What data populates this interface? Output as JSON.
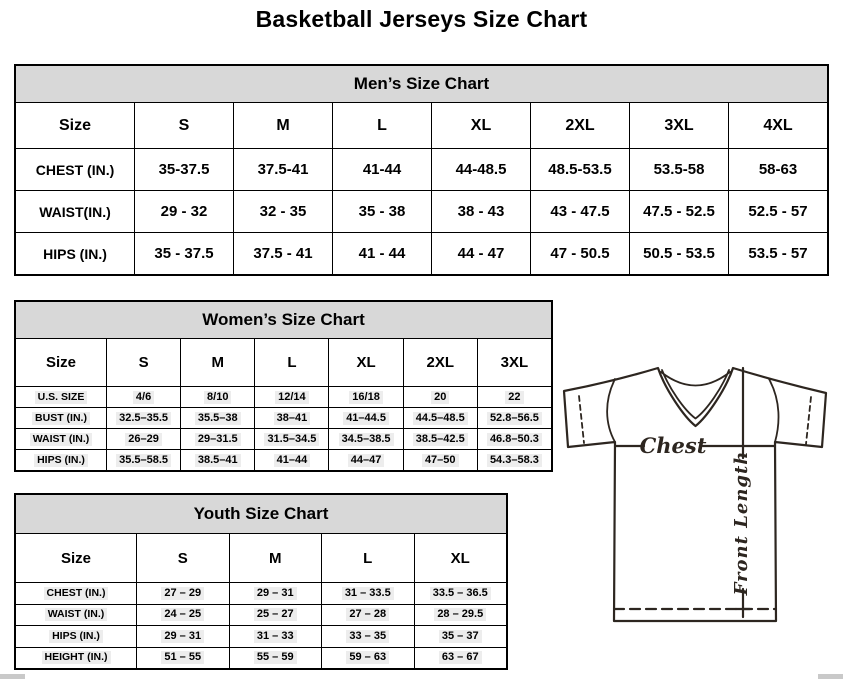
{
  "title": "Basketball Jerseys Size Chart",
  "men": {
    "title": "Men’s Size Chart",
    "columns": [
      "Size",
      "S",
      "M",
      "L",
      "XL",
      "2XL",
      "3XL",
      "4XL"
    ],
    "rows": [
      [
        "CHEST (IN.)",
        "35-37.5",
        "37.5-41",
        "41-44",
        "44-48.5",
        "48.5-53.5",
        "53.5-58",
        "58-63"
      ],
      [
        "WAIST(IN.)",
        "29 - 32",
        "32 - 35",
        "35 - 38",
        "38 - 43",
        "43 - 47.5",
        "47.5 - 52.5",
        "52.5 - 57"
      ],
      [
        "HIPS (IN.)",
        "35 - 37.5",
        "37.5 - 41",
        "41 - 44",
        "44 - 47",
        "47 - 50.5",
        "50.5 - 53.5",
        "53.5 - 57"
      ]
    ]
  },
  "women": {
    "title": "Women’s Size Chart",
    "columns": [
      "Size",
      "S",
      "M",
      "L",
      "XL",
      "2XL",
      "3XL"
    ],
    "rows": [
      [
        "U.S. SIZE",
        "4/6",
        "8/10",
        "12/14",
        "16/18",
        "20",
        "22"
      ],
      [
        "BUST (IN.)",
        "32.5–35.5",
        "35.5–38",
        "38–41",
        "41–44.5",
        "44.5–48.5",
        "52.8–56.5"
      ],
      [
        "WAIST (IN.)",
        "26–29",
        "29–31.5",
        "31.5–34.5",
        "34.5–38.5",
        "38.5–42.5",
        "46.8–50.3"
      ],
      [
        "HIPS (IN.)",
        "35.5–58.5",
        "38.5–41",
        "41–44",
        "44–47",
        "47–50",
        "54.3–58.3"
      ]
    ]
  },
  "youth": {
    "title": "Youth Size Chart",
    "columns": [
      "Size",
      "S",
      "M",
      "L",
      "XL"
    ],
    "rows": [
      [
        "CHEST (IN.)",
        "27 – 29",
        "29 – 31",
        "31 – 33.5",
        "33.5 – 36.5"
      ],
      [
        "WAIST (IN.)",
        "24 – 25",
        "25 – 27",
        "27 – 28",
        "28 – 29.5"
      ],
      [
        "HIPS (IN.)",
        "29 – 31",
        "31 – 33",
        "33 – 35",
        "35 – 37"
      ],
      [
        "HEIGHT (IN.)",
        "51 – 55",
        "55 – 59",
        "59 – 63",
        "63 – 67"
      ]
    ]
  },
  "diagram": {
    "chest_label": "Chest",
    "front_length_label": "Front Length"
  },
  "colors": {
    "table_header_band": "#d8d8d8",
    "table_border": "#000000",
    "value_highlight": "#ededed",
    "jersey_outline": "#2d2620",
    "scrollbar_button": "#c9c9c9"
  }
}
